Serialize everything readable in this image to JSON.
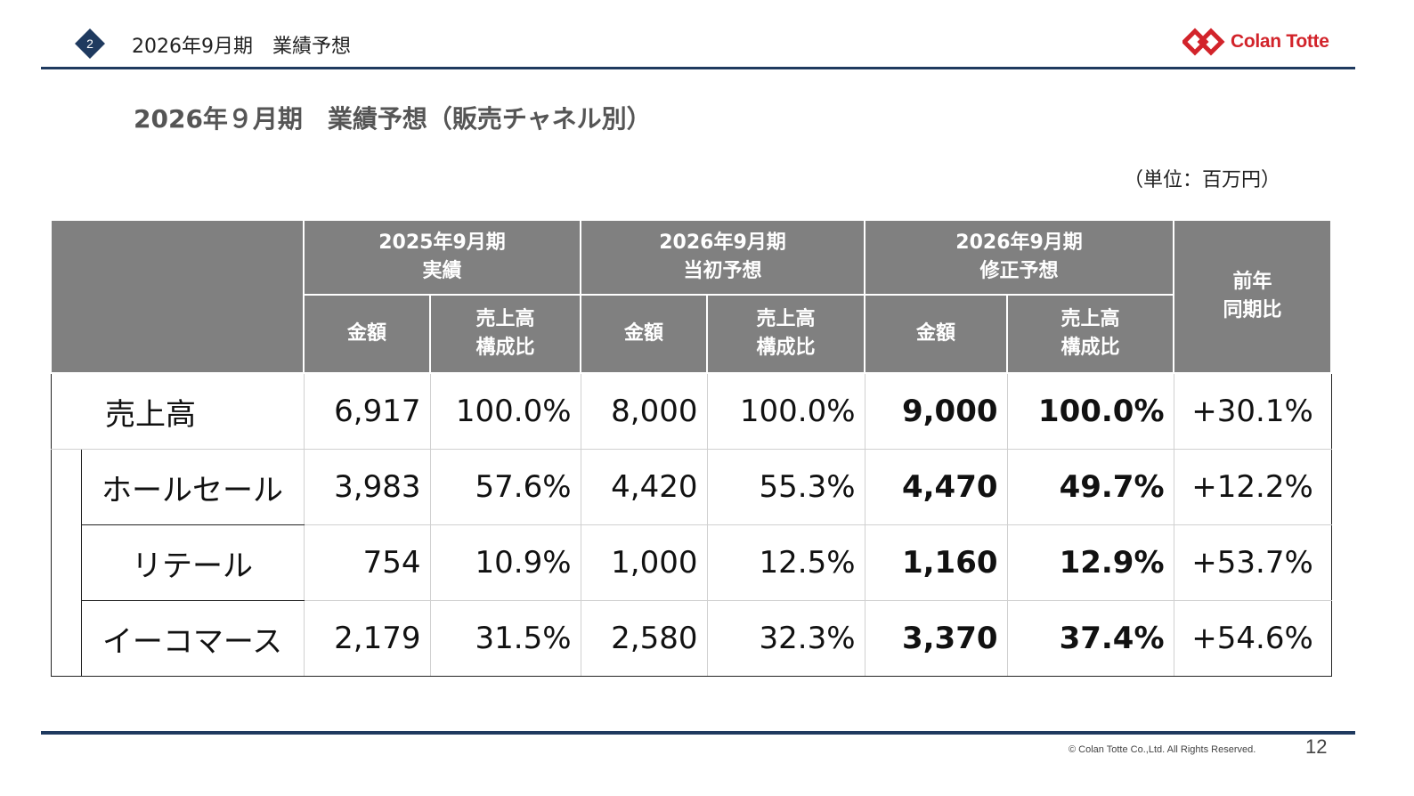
{
  "header": {
    "section_number": "2",
    "title": "2026年9月期　業績予想",
    "logo_text": "Colan Totte",
    "logo_mark": "diamond-chain-logo-icon",
    "accent_color": "#1f3a5f",
    "brand_color": "#d2232a"
  },
  "page": {
    "heading": "2026年９月期　業績予想（販売チャネル別）",
    "unit": "（単位：百万円）"
  },
  "table": {
    "header_fill": "#808080",
    "groups": [
      {
        "period": "2025年9月期",
        "label": "実績"
      },
      {
        "period": "2026年9月期",
        "label": "当初予想"
      },
      {
        "period": "2026年9月期",
        "label": "修正予想"
      }
    ],
    "sub_headers": {
      "amount": "金額",
      "ratio_line1": "売上高",
      "ratio_line2": "構成比"
    },
    "growth_header_line1": "前年",
    "growth_header_line2": "同期比",
    "total_row": {
      "label": "売上高",
      "values": [
        "6,917",
        "100.0%",
        "8,000",
        "100.0%",
        "9,000",
        "100.0%",
        "+30.1%"
      ]
    },
    "rows": [
      {
        "label": "ホールセール",
        "values": [
          "3,983",
          "57.6%",
          "4,420",
          "55.3%",
          "4,470",
          "49.7%",
          "+12.2%"
        ]
      },
      {
        "label": "リテール",
        "values": [
          "754",
          "10.9%",
          "1,000",
          "12.5%",
          "1,160",
          "12.9%",
          "+53.7%"
        ]
      },
      {
        "label": "イーコマース",
        "values": [
          "2,179",
          "31.5%",
          "2,580",
          "32.3%",
          "3,370",
          "37.4%",
          "+54.6%"
        ]
      }
    ]
  },
  "footer": {
    "copyright": "© Colan Totte Co.,Ltd. All Rights Reserved.",
    "page_number": "12"
  }
}
